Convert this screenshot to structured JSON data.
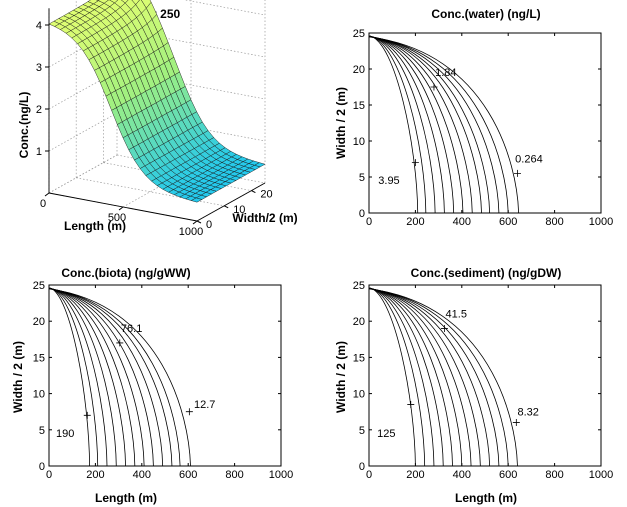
{
  "chart_data": [
    {
      "type": "surface3d",
      "title": "time(days)= 250",
      "xlabel": "Length (m)",
      "ylabel": "Width/2 (m)",
      "zlabel": "Conc.(ng/L)",
      "x_ticks": [
        "0",
        "500",
        "1000"
      ],
      "y_ticks": [
        "0",
        "10",
        "20"
      ],
      "z_ticks": [
        "1",
        "2",
        "3",
        "4"
      ],
      "xlim": [
        0,
        1000
      ],
      "ylim": [
        0,
        25
      ],
      "zlim": [
        0,
        4
      ],
      "peak_value": 4.3,
      "colormap": [
        "#20c8f0",
        "#a0f080",
        "#e8ff70"
      ],
      "grid": true
    },
    {
      "type": "contour",
      "title": "Conc.(water) (ng/L)",
      "xlabel": "",
      "ylabel": "Width / 2 (m)",
      "x_ticks": [
        "0",
        "200",
        "400",
        "600",
        "800",
        "1000"
      ],
      "y_ticks": [
        "0",
        "5",
        "10",
        "15",
        "20",
        "25"
      ],
      "xlim": [
        0,
        1000
      ],
      "ylim": [
        0,
        25
      ],
      "contour_feet_x": [
        210,
        245,
        285,
        325,
        365,
        405,
        445,
        485,
        520,
        560,
        600,
        645
      ],
      "labels": [
        {
          "text": "1.84",
          "x": 280,
          "y": 17.5,
          "tx": 285,
          "ty": 19
        },
        {
          "text": "3.95",
          "x": 200,
          "y": 7,
          "tx": 40,
          "ty": 4
        },
        {
          "text": "0.264",
          "x": 640,
          "y": 5.5,
          "tx": 630,
          "ty": 7
        }
      ]
    },
    {
      "type": "contour",
      "title": "Conc.(biota) (ng/gWW)",
      "xlabel": "Length (m)",
      "ylabel": "Width / 2 (m)",
      "x_ticks": [
        "0",
        "200",
        "400",
        "600",
        "800",
        "1000"
      ],
      "y_ticks": [
        "0",
        "5",
        "10",
        "15",
        "20",
        "25"
      ],
      "xlim": [
        0,
        1000
      ],
      "ylim": [
        0,
        25
      ],
      "contour_feet_x": [
        175,
        210,
        250,
        290,
        330,
        370,
        410,
        450,
        490,
        530,
        565,
        610
      ],
      "labels": [
        {
          "text": "76.1",
          "x": 305,
          "y": 17,
          "tx": 310,
          "ty": 18.5
        },
        {
          "text": "190",
          "x": 165,
          "y": 7,
          "tx": 30,
          "ty": 4
        },
        {
          "text": "12.7",
          "x": 605,
          "y": 7.5,
          "tx": 625,
          "ty": 8
        }
      ]
    },
    {
      "type": "contour",
      "title": "Conc.(sediment) (ng/gDW)",
      "xlabel": "Length (m)",
      "ylabel": "Width / 2 (m)",
      "x_ticks": [
        "0",
        "200",
        "400",
        "600",
        "800",
        "1000"
      ],
      "y_ticks": [
        "0",
        "5",
        "10",
        "15",
        "20",
        "25"
      ],
      "xlim": [
        0,
        1000
      ],
      "ylim": [
        0,
        25
      ],
      "contour_feet_x": [
        200,
        240,
        280,
        320,
        360,
        400,
        440,
        480,
        520,
        560,
        600,
        640
      ],
      "labels": [
        {
          "text": "41.5",
          "x": 325,
          "y": 19,
          "tx": 330,
          "ty": 20.5
        },
        {
          "text": "125",
          "x": 180,
          "y": 8.5,
          "tx": 35,
          "ty": 4
        },
        {
          "text": "8.32",
          "x": 635,
          "y": 6,
          "tx": 640,
          "ty": 7
        }
      ]
    }
  ]
}
